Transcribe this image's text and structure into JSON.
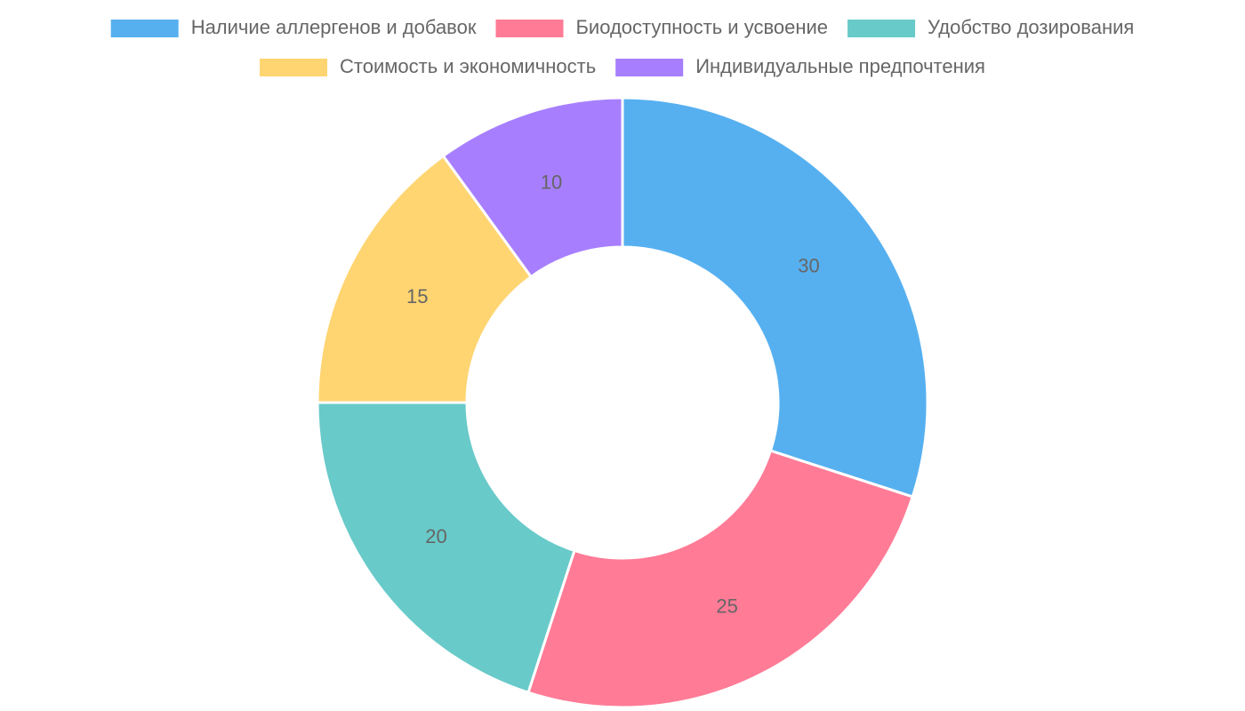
{
  "chart_data": {
    "type": "doughnut",
    "categories": [
      "Наличие аллергенов и добавок",
      "Биодоступность и усвоение",
      "Удобство дозирования",
      "Стоимость и экономичность",
      "Индивидуальные предпочтения"
    ],
    "values": [
      30,
      25,
      20,
      15,
      10
    ],
    "colors": [
      "#56b0f0",
      "#ff7b96",
      "#68cac9",
      "#ffd572",
      "#a77ffe"
    ],
    "legend": "top"
  }
}
